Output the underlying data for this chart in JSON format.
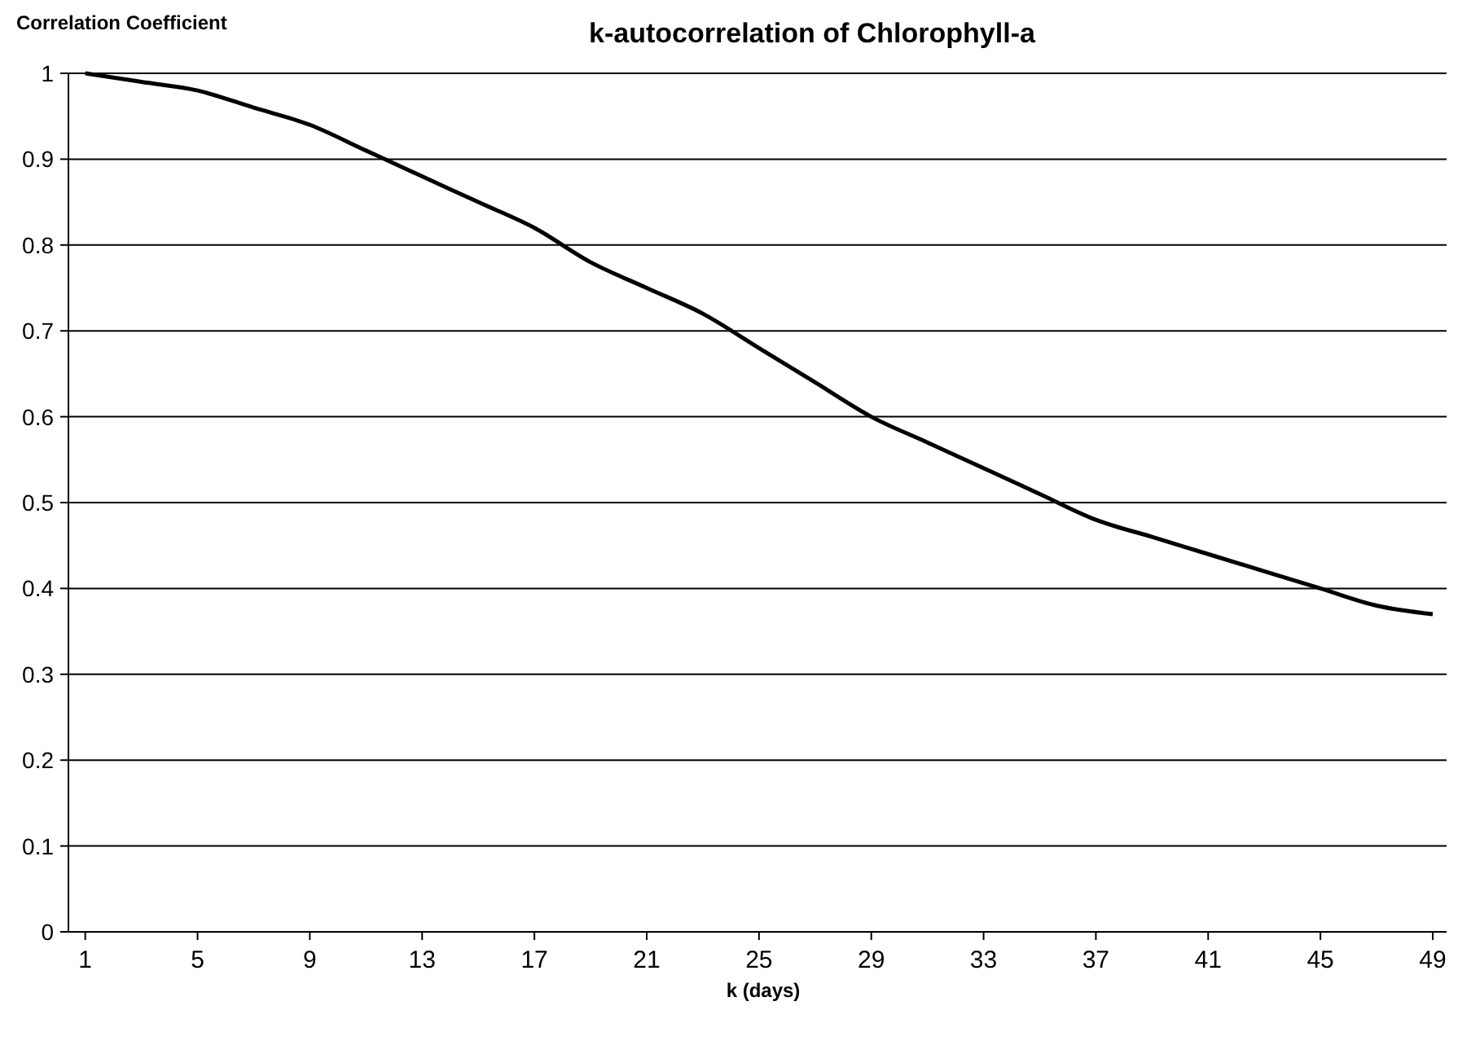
{
  "chart_data": {
    "type": "line",
    "title": "k-autocorrelation of Chlorophyll-a",
    "xlabel": "k (days)",
    "ylabel": "Correlation Coefficient",
    "x": [
      1,
      3,
      5,
      7,
      9,
      11,
      13,
      15,
      17,
      19,
      21,
      23,
      25,
      27,
      29,
      31,
      33,
      35,
      37,
      39,
      41,
      43,
      45,
      47,
      49
    ],
    "series": [
      {
        "color": "#000000",
        "values": [
          1.0,
          0.99,
          0.98,
          0.96,
          0.94,
          0.91,
          0.88,
          0.85,
          0.82,
          0.78,
          0.75,
          0.72,
          0.68,
          0.64,
          0.6,
          0.57,
          0.54,
          0.51,
          0.48,
          0.46,
          0.44,
          0.42,
          0.4,
          0.38,
          0.37
        ]
      }
    ],
    "xlim": [
      0.4,
      49.9
    ],
    "xticks": [
      1,
      5,
      9,
      13,
      17,
      21,
      25,
      29,
      33,
      37,
      41,
      45,
      49
    ],
    "ylim": [
      0,
      1
    ],
    "yticks": [
      0,
      0.1,
      0.2,
      0.3,
      0.4,
      0.5,
      0.6,
      0.7,
      0.8,
      0.9,
      1
    ],
    "grid": "y",
    "marker": "none",
    "line_style": "solid"
  }
}
